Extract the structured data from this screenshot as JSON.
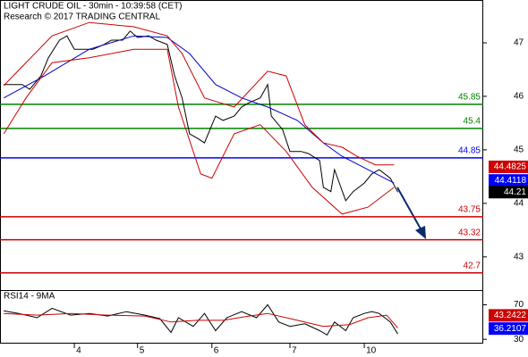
{
  "chart_data": [
    {
      "type": "line",
      "title": "LIGHT CRUDE OIL - 30min - 10:39:58 (CET)",
      "subtitle": "Research © 2017 TRADING CENTRAL",
      "xlim": [
        0,
        130
      ],
      "xticks": [
        {
          "value": 20,
          "label": "4"
        },
        {
          "value": 37,
          "label": "5"
        },
        {
          "value": 57,
          "label": "6"
        },
        {
          "value": 78,
          "label": "7"
        },
        {
          "value": 98,
          "label": "10"
        }
      ],
      "ylim": [
        42.38,
        47.8
      ],
      "yticks": [
        43,
        44,
        45,
        46,
        47
      ],
      "series": [
        {
          "color": "#000000",
          "x": [
            1,
            4,
            6,
            8,
            11,
            13,
            16,
            18,
            20,
            23,
            25,
            28,
            30,
            33,
            35,
            37,
            40,
            42,
            45,
            47,
            49,
            51,
            53,
            55,
            58,
            60,
            63,
            65,
            67,
            70,
            72,
            73,
            76,
            78,
            81,
            83,
            86,
            87,
            89,
            90,
            93,
            95,
            98,
            100,
            102,
            105,
            107
          ],
          "values": [
            46.22,
            46.22,
            46.22,
            46.13,
            46.38,
            46.72,
            47.05,
            47.13,
            46.88,
            46.88,
            46.88,
            46.97,
            47.05,
            47.05,
            47.22,
            47.1,
            47.13,
            47.05,
            46.97,
            46.38,
            45.97,
            45.3,
            45.22,
            45.13,
            45.63,
            45.55,
            45.63,
            45.8,
            45.88,
            45.97,
            46.22,
            45.63,
            45.38,
            44.97,
            44.97,
            44.93,
            44.8,
            44.3,
            44.22,
            44.63,
            44.05,
            44.22,
            44.38,
            44.55,
            44.63,
            44.47,
            44.21
          ]
        },
        {
          "color": "#0000cc",
          "x": [
            1,
            12,
            24,
            36,
            45,
            51,
            58,
            65,
            72,
            80,
            87,
            92,
            99,
            106
          ],
          "values": [
            45.97,
            46.38,
            46.88,
            47.13,
            47.1,
            46.8,
            46.22,
            45.97,
            45.8,
            45.55,
            45.13,
            44.88,
            44.63,
            44.38
          ]
        },
        {
          "color": "#cc0000",
          "x": [
            1,
            14,
            24,
            36,
            45,
            49,
            55,
            63,
            72,
            77,
            82,
            87,
            92,
            96,
            101,
            106
          ],
          "values": [
            46.2,
            47.13,
            47.38,
            47.3,
            47.13,
            46.8,
            45.97,
            45.8,
            46.47,
            46.38,
            45.47,
            45.13,
            45.05,
            44.88,
            44.72,
            44.72
          ]
        },
        {
          "color": "#cc0000",
          "x": [
            1,
            7,
            14,
            24,
            36,
            45,
            48,
            54,
            57,
            63,
            70,
            77,
            84,
            92,
            99,
            106
          ],
          "values": [
            45.3,
            45.97,
            46.63,
            46.72,
            46.88,
            46.88,
            45.8,
            44.55,
            44.47,
            45.3,
            45.47,
            44.97,
            44.3,
            43.8,
            43.93,
            44.3
          ]
        }
      ],
      "levels": [
        {
          "value": 45.85,
          "color": "#008000"
        },
        {
          "value": 45.4,
          "color": "#008000"
        },
        {
          "value": 44.85,
          "color": "#0000ff"
        },
        {
          "value": 43.75,
          "color": "#cc0000"
        },
        {
          "value": 43.32,
          "color": "#cc0000"
        },
        {
          "value": 42.7,
          "color": "#cc0000"
        }
      ],
      "price_tags": [
        {
          "value": 44.4825,
          "color": "#cc0000"
        },
        {
          "value": 44.4118,
          "color": "#0000ff"
        },
        {
          "value": 44.21,
          "color": "#000000"
        }
      ]
    },
    {
      "type": "line",
      "title": "RSI14 - 9MA",
      "xlim": [
        0,
        130
      ],
      "ylim": [
        25,
        85
      ],
      "yticks": [
        30,
        70
      ],
      "series": [
        {
          "color": "#000000",
          "x": [
            1,
            5,
            10,
            14,
            19,
            24,
            29,
            34,
            39,
            43,
            46,
            48,
            52,
            55,
            58,
            61,
            65,
            69,
            72,
            75,
            78,
            82,
            86,
            88,
            90,
            93,
            95,
            98,
            100,
            102,
            105,
            107
          ],
          "values": [
            63,
            60,
            55,
            66,
            58,
            60,
            57,
            62,
            58,
            54,
            38,
            55,
            45,
            60,
            40,
            55,
            62,
            55,
            70,
            50,
            45,
            48,
            40,
            35,
            50,
            40,
            55,
            60,
            62,
            60,
            50,
            36.21
          ]
        },
        {
          "color": "#cc0000",
          "x": [
            1,
            10,
            19,
            29,
            39,
            46,
            53,
            60,
            67,
            72,
            80,
            87,
            94,
            99,
            104,
            107
          ],
          "values": [
            60,
            58,
            60,
            58,
            57,
            50,
            52,
            52,
            57,
            60,
            52,
            45,
            47,
            55,
            58,
            43.24
          ]
        }
      ],
      "price_tags": [
        {
          "value": 43.2422,
          "color": "#cc0000"
        },
        {
          "value": 36.2107,
          "color": "#0000ff"
        }
      ]
    }
  ]
}
